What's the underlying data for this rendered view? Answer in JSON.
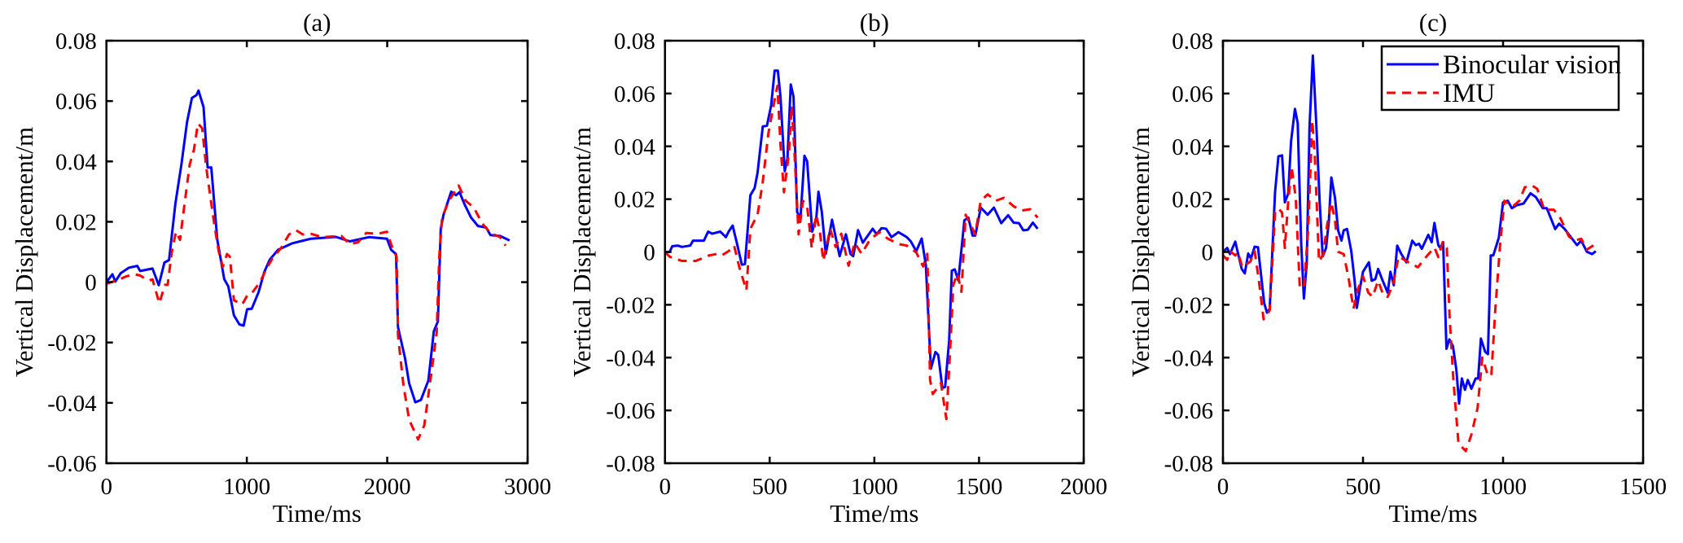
{
  "colors": {
    "binocular": "#0000ff",
    "imu": "#ff0000",
    "axis": "#000000"
  },
  "legend": {
    "items": [
      {
        "label": "Binocular vision",
        "style": "solid"
      },
      {
        "label": "IMU",
        "style": "dashed"
      }
    ],
    "placement": "top-right of panel (c)"
  },
  "chart_data": [
    {
      "type": "line",
      "title": "(a)",
      "xlabel": "Time/ms",
      "ylabel": "Vertical Displacement/m",
      "xlim": [
        0,
        3000
      ],
      "ylim": [
        -0.06,
        0.08
      ],
      "xticks": [
        0,
        1000,
        2000,
        3000
      ],
      "xtick_labels": [
        "0",
        "1000",
        "2000",
        "3000"
      ],
      "yticks": [
        -0.06,
        -0.04,
        -0.02,
        0,
        0.02,
        0.04,
        0.06,
        0.08
      ],
      "ytick_labels": [
        "-0.06",
        "-0.04",
        "-0.02",
        "0",
        "0.02",
        "0.04",
        "0.06",
        "0.08"
      ],
      "grid": false,
      "series": [
        {
          "name": "Binocular vision",
          "x": [
            0,
            43,
            63,
            102,
            161,
            220,
            240,
            328,
            373,
            413,
            446,
            491,
            534,
            574,
            609,
            642,
            656,
            692,
            721,
            747,
            790,
            839,
            868,
            908,
            947,
            977,
            1002,
            1035,
            1084,
            1124,
            1163,
            1222,
            1320,
            1379,
            1458,
            1635,
            1733,
            1870,
            1998,
            2028,
            2063,
            2077,
            2126,
            2156,
            2200,
            2240,
            2293,
            2332,
            2361,
            2381,
            2401,
            2456,
            2490,
            2515,
            2549,
            2597,
            2646,
            2705,
            2735,
            2804,
            2872
          ],
          "y": [
            0,
            0.0026,
            0.0002,
            0.003,
            0.0048,
            0.0054,
            0.0037,
            0.0045,
            -0.001,
            0.0065,
            0.0073,
            0.026,
            0.039,
            0.053,
            0.061,
            0.062,
            0.0635,
            0.058,
            0.038,
            0.038,
            0.014,
            0.001,
            -0.0014,
            -0.011,
            -0.014,
            -0.0144,
            -0.009,
            -0.0088,
            -0.0033,
            0.0033,
            0.0074,
            0.0107,
            0.0128,
            0.0135,
            0.0144,
            0.015,
            0.0135,
            0.0149,
            0.0144,
            0.0107,
            0.0093,
            -0.0149,
            -0.025,
            -0.0335,
            -0.0398,
            -0.039,
            -0.0326,
            -0.0163,
            -0.013,
            0.0177,
            0.0223,
            0.03,
            0.0288,
            0.0298,
            0.026,
            0.0214,
            0.0186,
            0.0181,
            0.0156,
            0.0153,
            0.0138
          ]
        },
        {
          "name": "IMU",
          "x": [
            0,
            82,
            141,
            200,
            240,
            299,
            328,
            377,
            417,
            436,
            466,
            495,
            524,
            554,
            593,
            623,
            652,
            682,
            711,
            741,
            770,
            800,
            829,
            859,
            879,
            908,
            967,
            1006,
            1035,
            1094,
            1143,
            1183,
            1242,
            1301,
            1350,
            1399,
            1458,
            1537,
            1674,
            1733,
            1792,
            1851,
            1929,
            1998,
            2038,
            2067,
            2077,
            2116,
            2156,
            2220,
            2264,
            2313,
            2352,
            2371,
            2391,
            2440,
            2509,
            2558,
            2617,
            2676,
            2735,
            2804,
            2843
          ],
          "y": [
            -0.0005,
            0.0007,
            0.0019,
            0.0026,
            0.0022,
            0.0005,
            0.0009,
            -0.007,
            -0.0009,
            -0.0009,
            0.0102,
            0.0167,
            0.014,
            0.025,
            0.039,
            0.0437,
            0.0526,
            0.051,
            0.038,
            0.028,
            0.0186,
            0.0102,
            0.0051,
            0.0093,
            0.0084,
            -0.006,
            -0.0074,
            -0.0042,
            -0.0037,
            0,
            0.0047,
            0.0079,
            0.0112,
            0.0158,
            0.0172,
            0.0158,
            0.016,
            0.0149,
            0.0153,
            0.0126,
            0.0132,
            0.0163,
            0.016,
            0.0167,
            0.0112,
            0.0084,
            -0.0177,
            -0.0344,
            -0.0456,
            -0.0521,
            -0.0474,
            -0.0307,
            -0.0167,
            0.0084,
            0.0214,
            0.027,
            0.032,
            0.027,
            0.0247,
            0.0195,
            0.0163,
            0.0149,
            0.0121
          ]
        }
      ]
    },
    {
      "type": "line",
      "title": "(b)",
      "xlabel": "Time/ms",
      "ylabel": "Vertical Displacement/m",
      "xlim": [
        0,
        2000
      ],
      "ylim": [
        -0.08,
        0.08
      ],
      "xticks": [
        0,
        500,
        1000,
        1500,
        2000
      ],
      "xtick_labels": [
        "0",
        "500",
        "1000",
        "1500",
        "2000"
      ],
      "yticks": [
        -0.08,
        -0.06,
        -0.04,
        -0.02,
        0,
        0.02,
        0.04,
        0.06,
        0.08
      ],
      "ytick_labels": [
        "-0.08",
        "-0.06",
        "-0.04",
        "-0.02",
        "0",
        "0.02",
        "0.04",
        "0.06",
        "0.08"
      ],
      "grid": false,
      "series": [
        {
          "name": "Binocular vision",
          "x": [
            0,
            22,
            35,
            62,
            81,
            120,
            134,
            186,
            206,
            225,
            264,
            291,
            304,
            323,
            343,
            367,
            382,
            408,
            428,
            442,
            467,
            487,
            507,
            524,
            539,
            552,
            572,
            585,
            601,
            614,
            631,
            647,
            666,
            679,
            703,
            723,
            733,
            749,
            768,
            798,
            834,
            864,
            886,
            899,
            922,
            945,
            992,
            1011,
            1034,
            1056,
            1082,
            1115,
            1155,
            1174,
            1200,
            1226,
            1246,
            1270,
            1292,
            1305,
            1325,
            1338,
            1357,
            1370,
            1384,
            1401,
            1430,
            1449,
            1469,
            1482,
            1508,
            1541,
            1571,
            1606,
            1639,
            1665,
            1691,
            1711,
            1733,
            1757,
            1780
          ],
          "y": [
            0,
            0,
            0.0022,
            0.0024,
            0.0019,
            0.0024,
            0.0043,
            0.0043,
            0.0077,
            0.0069,
            0.0077,
            0.0056,
            0.0077,
            0.01,
            0.0035,
            -0.0048,
            -0.0046,
            0.0215,
            0.0242,
            0.03,
            0.0475,
            0.0478,
            0.0555,
            0.0687,
            0.0687,
            0.0587,
            0.0306,
            0.0353,
            0.0634,
            0.0587,
            0.0152,
            0.0125,
            0.0364,
            0.0343,
            0.0077,
            0.013,
            0.0228,
            0.0152,
            -0.0007,
            0.0122,
            -0.0016,
            0.0067,
            -0.0007,
            -0.0016,
            0.0083,
            0.0035,
            0.0088,
            0.0067,
            0.009,
            0.0088,
            0.0056,
            0.0075,
            0.0056,
            0.004,
            0.0003,
            0.0051,
            -0.005,
            -0.0442,
            -0.0379,
            -0.039,
            -0.0515,
            -0.0511,
            -0.0336,
            -0.0071,
            -0.0066,
            -0.0108,
            0.012,
            0.013,
            0.0062,
            0.0062,
            0.0168,
            0.0141,
            0.0168,
            0.0109,
            0.0139,
            0.0111,
            0.0109,
            0.0082,
            0.0084,
            0.0111,
            0.0088
          ]
        },
        {
          "name": "IMU",
          "x": [
            0,
            22,
            81,
            147,
            212,
            251,
            271,
            304,
            330,
            356,
            389,
            408,
            442,
            466,
            494,
            526,
            537,
            552,
            568,
            592,
            605,
            618,
            638,
            659,
            679,
            701,
            722,
            740,
            756,
            789,
            815,
            842,
            877,
            906,
            939,
            978,
            1024,
            1063,
            1115,
            1155,
            1200,
            1233,
            1253,
            1266,
            1279,
            1299,
            1318,
            1344,
            1364,
            1377,
            1397,
            1416,
            1436,
            1456,
            1482,
            1508,
            1541,
            1580,
            1619,
            1665,
            1705,
            1744,
            1780
          ],
          "y": [
            0,
            -0.0018,
            -0.0034,
            -0.0034,
            -0.0013,
            -0.0007,
            -0.0013,
            0.0003,
            0.0024,
            -0.006,
            -0.0145,
            0.0088,
            0.0141,
            0.0258,
            0.0449,
            0.0587,
            0.0629,
            0.0406,
            0.0226,
            0.0375,
            0.0555,
            0.0385,
            0.0067,
            0.0194,
            0.0173,
            0.0014,
            0.0141,
            0.0077,
            -0.0034,
            0.0088,
            0.0019,
            0.0069,
            -0.0052,
            0.0035,
            -0.0007,
            0.0046,
            0.0075,
            0.0051,
            0.003,
            0.0024,
            -0.0002,
            -0.0055,
            -0.0007,
            -0.0485,
            -0.0538,
            -0.0517,
            -0.0496,
            -0.0633,
            -0.0336,
            -0.0124,
            -0.0082,
            -0.0151,
            0.0141,
            0.0109,
            0.0067,
            0.0194,
            0.0218,
            0.0194,
            0.0205,
            0.0173,
            0.0157,
            0.0162,
            0.013
          ]
        }
      ]
    },
    {
      "type": "line",
      "title": "(c)",
      "xlabel": "Time/ms",
      "ylabel": "Vertical Displacement/m",
      "xlim": [
        0,
        1500
      ],
      "ylim": [
        -0.08,
        0.08
      ],
      "xticks": [
        0,
        500,
        1000,
        1500
      ],
      "xtick_labels": [
        "0",
        "500",
        "1000",
        "1500"
      ],
      "yticks": [
        -0.08,
        -0.06,
        -0.04,
        -0.02,
        0,
        0.02,
        0.04,
        0.06,
        0.08
      ],
      "ytick_labels": [
        "-0.08",
        "-0.06",
        "-0.04",
        "-0.02",
        "0",
        "0.02",
        "0.04",
        "0.06",
        "0.08"
      ],
      "grid": false,
      "series": [
        {
          "name": "Binocular vision",
          "x": [
            0,
            15,
            25,
            44,
            67,
            78,
            90,
            100,
            113,
            125,
            147,
            157,
            167,
            186,
            198,
            211,
            221,
            233,
            243,
            257,
            267,
            279,
            289,
            299,
            309,
            321,
            333,
            345,
            356,
            368,
            378,
            387,
            400,
            411,
            423,
            431,
            443,
            458,
            470,
            478,
            490,
            500,
            521,
            531,
            544,
            554,
            568,
            588,
            598,
            610,
            622,
            637,
            655,
            676,
            688,
            700,
            710,
            733,
            745,
            755,
            769,
            776,
            786,
            798,
            808,
            821,
            833,
            843,
            853,
            864,
            874,
            887,
            902,
            911,
            921,
            936,
            946,
            956,
            965,
            985,
            1000,
            1017,
            1031,
            1049,
            1073,
            1098,
            1117,
            1142,
            1156,
            1186,
            1200,
            1220,
            1240,
            1264,
            1279,
            1299,
            1318,
            1331
          ],
          "y": [
            0,
            0.0015,
            -0.0008,
            0.0039,
            -0.0064,
            -0.0081,
            -0.0006,
            -0.0025,
            0.002,
            0.0018,
            -0.0193,
            -0.023,
            -0.0215,
            0.0228,
            0.0362,
            0.0366,
            0.0188,
            0.0222,
            0.0418,
            0.0542,
            0.0488,
            0.0037,
            -0.0176,
            -0.0042,
            0.0474,
            0.0744,
            0.0486,
            0.0194,
            -0.0017,
            0.0015,
            0.0116,
            0.0282,
            0.0205,
            0.0082,
            0.0043,
            0.0082,
            0.0087,
            0.0003,
            -0.0109,
            -0.0212,
            -0.0131,
            -0.0075,
            -0.0039,
            -0.0109,
            -0.0103,
            -0.0064,
            -0.0103,
            -0.0154,
            -0.0075,
            -0.0126,
            0.0024,
            -0.0008,
            -0.0039,
            0.0043,
            0.0026,
            0.0031,
            0.0012,
            0.0065,
            0.0037,
            0.011,
            0.0026,
            0.0015,
            0.0037,
            -0.0367,
            -0.0331,
            -0.0356,
            -0.0445,
            -0.0574,
            -0.0479,
            -0.0522,
            -0.0485,
            -0.0518,
            -0.0479,
            -0.0479,
            -0.0328,
            -0.0378,
            -0.0387,
            -0.0013,
            -0.0013,
            0.0054,
            0.0188,
            0.0194,
            0.0166,
            0.0177,
            0.0183,
            0.0222,
            0.0208,
            0.0166,
            0.0166,
            0.0087,
            0.0107,
            0.0087,
            0.0059,
            0.0026,
            0.0043,
            0.0001,
            -0.0008,
            0.0003
          ]
        },
        {
          "name": "IMU",
          "x": [
            0,
            15,
            25,
            44,
            54,
            69,
            98,
            113,
            127,
            145,
            167,
            186,
            198,
            211,
            221,
            233,
            245,
            260,
            274,
            289,
            304,
            319,
            328,
            343,
            358,
            372,
            387,
            400,
            411,
            431,
            449,
            466,
            481,
            500,
            519,
            534,
            554,
            573,
            588,
            608,
            627,
            657,
            696,
            725,
            755,
            769,
            784,
            799,
            809,
            823,
            841,
            867,
            887,
            909,
            926,
            946,
            958,
            972,
            990,
            1005,
            1019,
            1034,
            1058,
            1078,
            1103,
            1122,
            1147,
            1181,
            1205,
            1235,
            1254,
            1279,
            1299,
            1331
          ],
          "y": [
            -0.0013,
            -0.003,
            0.0003,
            -0.0013,
            -0.0002,
            -0.0058,
            -0.0036,
            0.0003,
            -0.0098,
            -0.0255,
            -0.0221,
            0.0149,
            0.0166,
            0.0149,
            0.0015,
            0.0194,
            0.0323,
            0.0205,
            -0.0131,
            -0.0137,
            0.0082,
            0.0497,
            0.0362,
            -0.0036,
            -0.0008,
            0.0104,
            0.0188,
            0.0121,
            0.0001,
            -0.0008,
            -0.0103,
            -0.0215,
            -0.0142,
            -0.0092,
            -0.0154,
            -0.017,
            -0.0109,
            -0.0165,
            -0.017,
            -0.012,
            -0.0017,
            -0.0036,
            -0.0058,
            -0.0019,
            0.0017,
            -0.0019,
            0.0037,
            0.0015,
            -0.0243,
            -0.049,
            -0.0726,
            -0.0754,
            -0.0692,
            -0.0591,
            -0.04,
            -0.0468,
            -0.0468,
            -0.0221,
            0.0037,
            0.0194,
            0.0183,
            0.0172,
            0.0194,
            0.0245,
            0.0252,
            0.0239,
            0.016,
            0.016,
            0.0127,
            0.0059,
            0.0043,
            0.005,
            0.0009,
            0.0031
          ]
        }
      ]
    }
  ]
}
